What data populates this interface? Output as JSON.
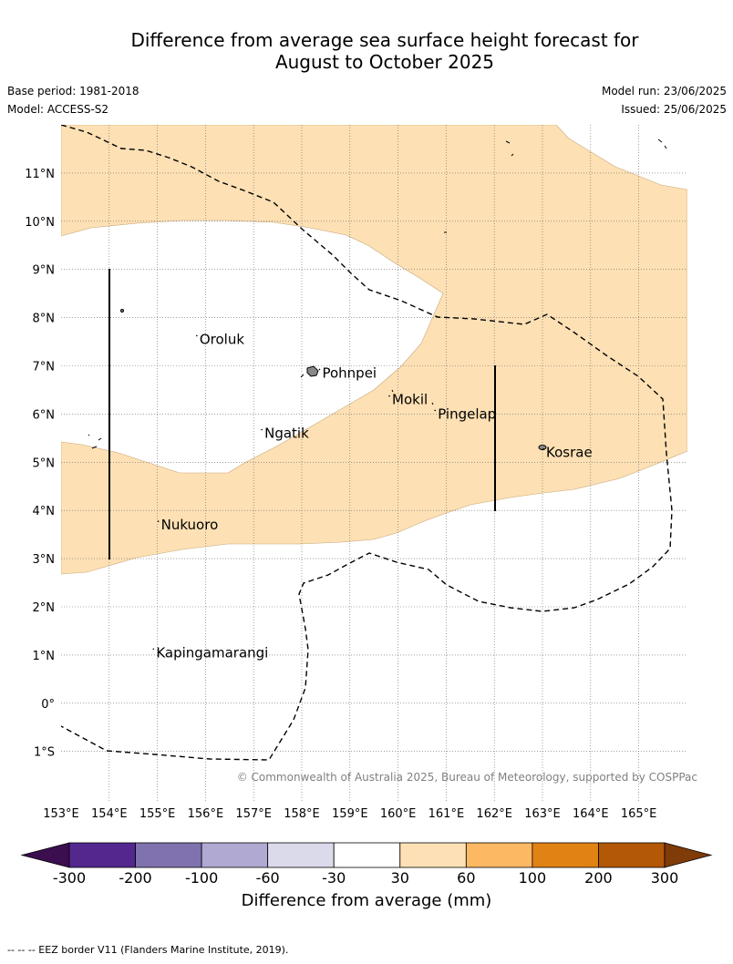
{
  "title": {
    "line1": "Difference from average sea surface height forecast for",
    "line2": "August to October 2025"
  },
  "meta": {
    "base_period": "Base period: 1981-2018",
    "model": "Model: ACCESS-S2",
    "model_run": "Model run: 23/06/2025",
    "issued": "Issued: 25/06/2025"
  },
  "map": {
    "lon_range": [
      153,
      166
    ],
    "lat_range": [
      -2,
      12
    ],
    "lon_labels": [
      "153°E",
      "154°E",
      "155°E",
      "156°E",
      "157°E",
      "158°E",
      "159°E",
      "160°E",
      "161°E",
      "162°E",
      "163°E",
      "164°E",
      "165°E"
    ],
    "lat_labels": [
      "11°N",
      "10°N",
      "9°N",
      "8°N",
      "7°N",
      "6°N",
      "5°N",
      "4°N",
      "3°N",
      "2°N",
      "1°N",
      "0°",
      "1°S"
    ],
    "places": [
      {
        "name": "Oroluk",
        "lon": 155.8,
        "lat": 7.55
      },
      {
        "name": "Pohnpei",
        "lon": 158.35,
        "lat": 6.85
      },
      {
        "name": "Mokil",
        "lon": 159.8,
        "lat": 6.3
      },
      {
        "name": "Pingelap",
        "lon": 160.75,
        "lat": 6.0
      },
      {
        "name": "Ngatik",
        "lon": 157.15,
        "lat": 5.6
      },
      {
        "name": "Kosrae",
        "lon": 163.0,
        "lat": 5.2
      },
      {
        "name": "Nukuoro",
        "lon": 155.0,
        "lat": 3.7
      },
      {
        "name": "Kapingamarangi",
        "lon": 154.9,
        "lat": 1.05
      }
    ],
    "anomaly_fill_color": "#fde0b4",
    "credit": "© Commonwealth of Australia 2025, Bureau of Meteorology, supported by COSPPac"
  },
  "colorbar": {
    "title": "Difference from average (mm)",
    "labels": [
      "-300",
      "-200",
      "-100",
      "-60",
      "-30",
      "30",
      "60",
      "100",
      "200",
      "300"
    ],
    "colors": [
      "#3b0f4f",
      "#54278f",
      "#7f72ae",
      "#b0a9d2",
      "#dadaeb",
      "#ffffff",
      "#fee0b6",
      "#fdb863",
      "#e08214",
      "#b35806",
      "#7f3b08"
    ]
  },
  "footer": "--  --  -- EEZ border V11 (Flanders Marine Institute, 2019)."
}
